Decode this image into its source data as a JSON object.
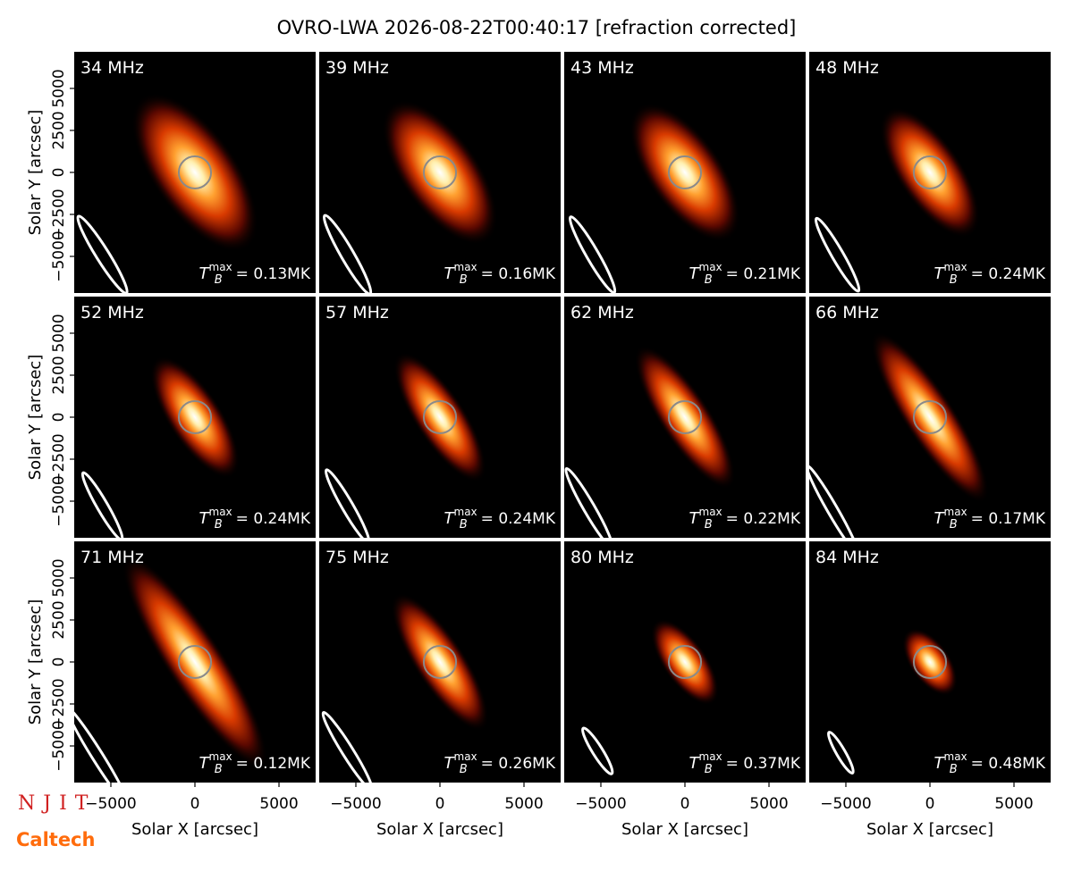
{
  "title": "OVRO-LWA 2026-08-22T00:40:17 [refraction corrected]",
  "logos": [
    "NJIT",
    "Caltech"
  ],
  "axes": {
    "xlabel": "Solar X [arcsec]",
    "ylabel": "Solar Y [arcsec]",
    "xlim": [
      -7180,
      7180
    ],
    "ylim": [
      -7180,
      7180
    ],
    "xticks": [
      {
        "value": -5000,
        "label": "−5000"
      },
      0,
      5000
    ],
    "yticks": [
      {
        "value": -5000,
        "label": "−5000"
      },
      {
        "value": -2500,
        "label": "−2500"
      },
      0,
      2500,
      5000
    ],
    "solar_radius": 960
  },
  "chart_data": [
    {
      "type": "image",
      "label": "34 MHz",
      "tb_symbol": "T",
      "tb_sub": "B",
      "tb_sup": "max",
      "tb_text": "= 0.13MK",
      "tb_max": 0.13,
      "source": {
        "x": 0,
        "y": 0,
        "major": 5500,
        "minor": 2500,
        "angle": 55
      },
      "beam": {
        "x": -5500,
        "y": -4900,
        "major": 2700,
        "minor": 380,
        "angle": 58
      }
    },
    {
      "type": "image",
      "label": "39 MHz",
      "tb_symbol": "T",
      "tb_sub": "B",
      "tb_sup": "max",
      "tb_text": "= 0.16MK",
      "tb_max": 0.16,
      "source": {
        "x": 0,
        "y": 0,
        "major": 5000,
        "minor": 2300,
        "angle": 55
      },
      "beam": {
        "x": -5500,
        "y": -4900,
        "major": 2700,
        "minor": 380,
        "angle": 60
      }
    },
    {
      "type": "image",
      "label": "43 MHz",
      "tb_symbol": "T",
      "tb_sub": "B",
      "tb_sup": "max",
      "tb_text": "= 0.21MK",
      "tb_max": 0.21,
      "source": {
        "x": 0,
        "y": 0,
        "major": 4800,
        "minor": 2200,
        "angle": 55
      },
      "beam": {
        "x": -5500,
        "y": -4900,
        "major": 2600,
        "minor": 360,
        "angle": 60
      }
    },
    {
      "type": "image",
      "label": "48 MHz",
      "tb_symbol": "T",
      "tb_sub": "B",
      "tb_sup": "max",
      "tb_text": "= 0.24MK",
      "tb_max": 0.24,
      "source": {
        "x": 0,
        "y": 0,
        "major": 4500,
        "minor": 1900,
        "angle": 56
      },
      "beam": {
        "x": -5500,
        "y": -4900,
        "major": 2500,
        "minor": 340,
        "angle": 60
      }
    },
    {
      "type": "image",
      "label": "52 MHz",
      "tb_symbol": "T",
      "tb_sub": "B",
      "tb_sup": "max",
      "tb_text": "= 0.24MK",
      "tb_max": 0.24,
      "source": {
        "x": 0,
        "y": 0,
        "major": 4200,
        "minor": 1600,
        "angle": 57
      },
      "beam": {
        "x": -5500,
        "y": -5300,
        "major": 2300,
        "minor": 320,
        "angle": 60
      }
    },
    {
      "type": "image",
      "label": "57 MHz",
      "tb_symbol": "T",
      "tb_sub": "B",
      "tb_sup": "max",
      "tb_text": "= 0.24MK",
      "tb_max": 0.24,
      "source": {
        "x": 0,
        "y": 0,
        "major": 4500,
        "minor": 1500,
        "angle": 57
      },
      "beam": {
        "x": -5500,
        "y": -5300,
        "major": 2500,
        "minor": 330,
        "angle": 60
      }
    },
    {
      "type": "image",
      "label": "62 MHz",
      "tb_symbol": "T",
      "tb_sub": "B",
      "tb_sup": "max",
      "tb_text": "= 0.22MK",
      "tb_max": 0.22,
      "source": {
        "x": 0,
        "y": 0,
        "major": 5000,
        "minor": 1500,
        "angle": 57
      },
      "beam": {
        "x": -5700,
        "y": -5400,
        "major": 2700,
        "minor": 330,
        "angle": 60
      }
    },
    {
      "type": "image",
      "label": "66 MHz",
      "tb_symbol": "T",
      "tb_sub": "B",
      "tb_sup": "max",
      "tb_text": "= 0.17MK",
      "tb_max": 0.17,
      "source": {
        "x": 0,
        "y": 0,
        "major": 6000,
        "minor": 1500,
        "angle": 57
      },
      "beam": {
        "x": -5800,
        "y": -5500,
        "major": 3000,
        "minor": 300,
        "angle": 60
      }
    },
    {
      "type": "image",
      "label": "71 MHz",
      "tb_symbol": "T",
      "tb_sub": "B",
      "tb_sup": "max",
      "tb_text": "= 0.12MK",
      "tb_max": 0.12,
      "source": {
        "x": 0,
        "y": 0,
        "major": 7500,
        "minor": 1700,
        "angle": 57
      },
      "beam": {
        "x": -5800,
        "y": -5600,
        "major": 3400,
        "minor": 320,
        "angle": 58
      }
    },
    {
      "type": "image",
      "label": "75 MHz",
      "tb_symbol": "T",
      "tb_sub": "B",
      "tb_sup": "max",
      "tb_text": "= 0.26MK",
      "tb_max": 0.26,
      "source": {
        "x": 0,
        "y": 0,
        "major": 4800,
        "minor": 1500,
        "angle": 57
      },
      "beam": {
        "x": -5500,
        "y": -5300,
        "major": 2700,
        "minor": 330,
        "angle": 58
      }
    },
    {
      "type": "image",
      "label": "80 MHz",
      "tb_symbol": "T",
      "tb_sub": "B",
      "tb_sup": "max",
      "tb_text": "= 0.37MK",
      "tb_max": 0.37,
      "source": {
        "x": 0,
        "y": 0,
        "major": 3000,
        "minor": 1300,
        "angle": 55
      },
      "beam": {
        "x": -5200,
        "y": -5300,
        "major": 1600,
        "minor": 300,
        "angle": 58
      }
    },
    {
      "type": "image",
      "label": "84 MHz",
      "tb_symbol": "T",
      "tb_sub": "B",
      "tb_sup": "max",
      "tb_text": "= 0.48MK",
      "tb_max": 0.48,
      "source": {
        "x": 0,
        "y": 0,
        "major": 2300,
        "minor": 1200,
        "angle": 55
      },
      "beam": {
        "x": -5300,
        "y": -5400,
        "major": 1400,
        "minor": 260,
        "angle": 60
      }
    }
  ]
}
